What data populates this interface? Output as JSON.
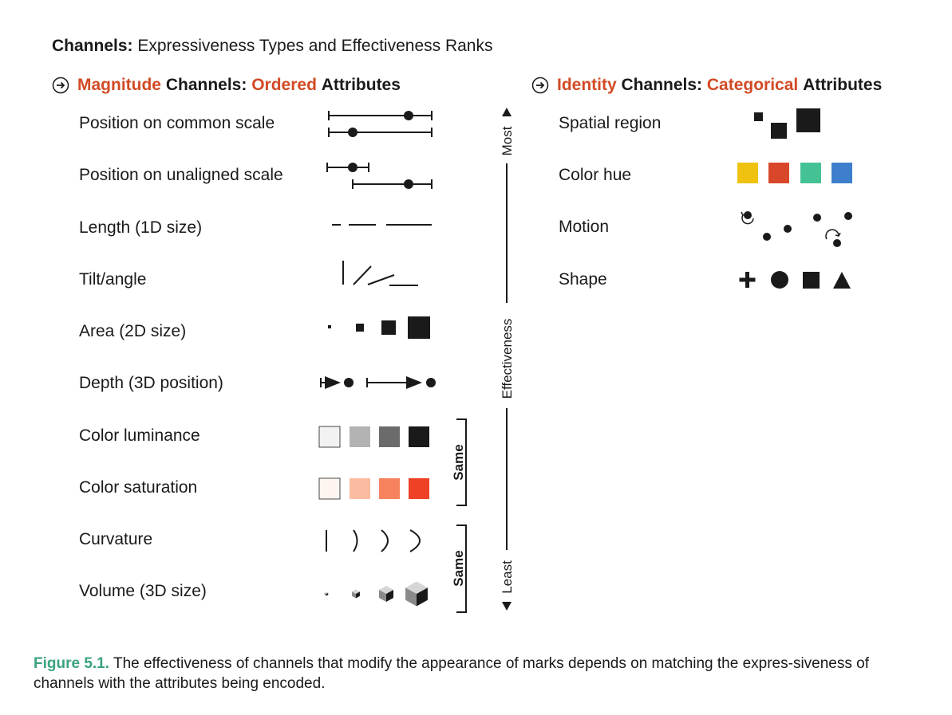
{
  "title": {
    "bold": "Channels:",
    "rest": "Expressiveness Types and Effectiveness Ranks"
  },
  "magnitude": {
    "word1": "Magnitude",
    "word2": "Channels:",
    "word3": "Ordered",
    "word4": "Attributes",
    "rows": [
      "Position on common scale",
      "Position on unaligned scale",
      "Length (1D size)",
      "Tilt/angle",
      "Area (2D size)",
      "Depth (3D position)",
      "Color luminance",
      "Color saturation",
      "Curvature",
      "Volume (3D size)"
    ]
  },
  "identity": {
    "word1": "Identity",
    "word2": "Channels:",
    "word3": "Categorical",
    "word4": "Attributes",
    "rows": [
      "Spatial region",
      "Color hue",
      "Motion",
      "Shape"
    ]
  },
  "axis": {
    "most": "Most",
    "middle": "Effectiveness",
    "least": "Least"
  },
  "same_brackets": [
    "Same",
    "Same"
  ],
  "colors": {
    "accent": "#d24a25",
    "caption_accent": "#3aa37e",
    "luminance": [
      "#f2f2f2",
      "#b3b3b3",
      "#6b6b6b",
      "#1a1a1a"
    ],
    "saturation": [
      "#fff5f0",
      "#fbbba0",
      "#f6825e",
      "#ef4125"
    ],
    "hue": [
      "#efc210",
      "#d9472a",
      "#45c293",
      "#3d7fcb"
    ]
  },
  "icons": [
    "arrow-circle-right-icon"
  ],
  "caption": {
    "label": "Figure 5.1.",
    "text": "The effectiveness of channels that modify the appearance of marks depends on matching the expres-siveness of channels with the attributes being encoded."
  }
}
